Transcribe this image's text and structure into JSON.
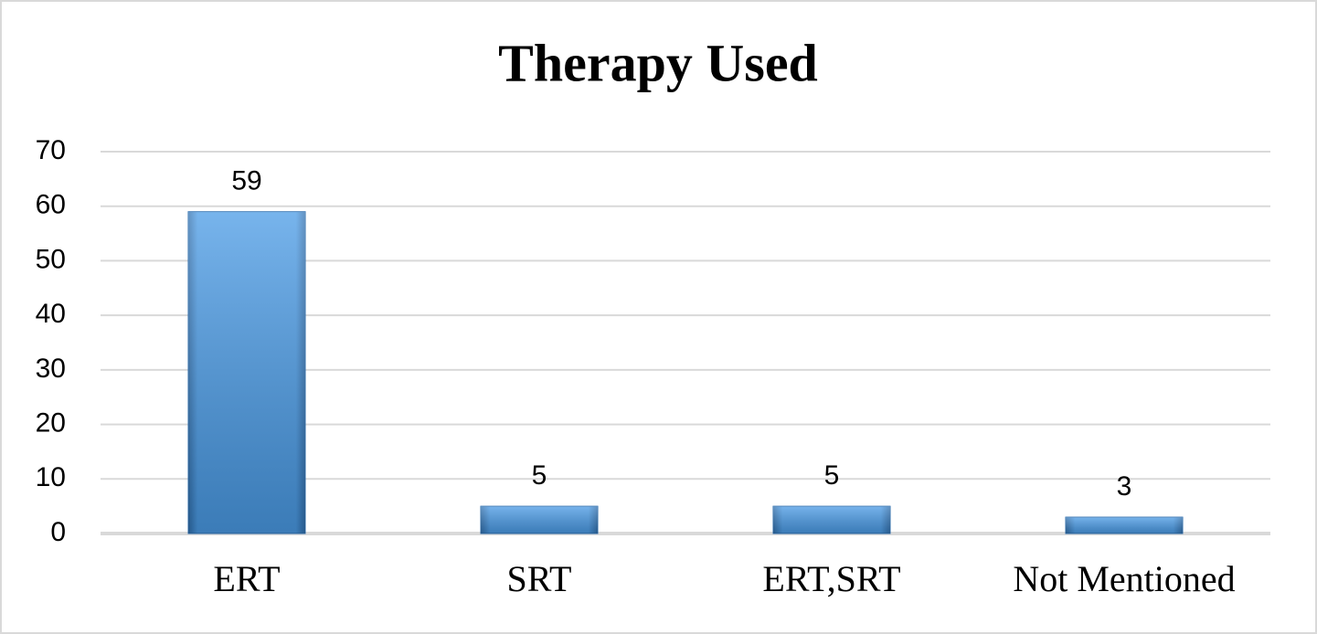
{
  "chart_data": {
    "type": "bar",
    "title": "Therapy Used",
    "categories": [
      "ERT",
      "SRT",
      "ERT,SRT",
      "Not Mentioned"
    ],
    "values": [
      59,
      5,
      5,
      3
    ],
    "color": "#4a9be6",
    "ylim": [
      0,
      70
    ],
    "yticks": [
      0,
      10,
      20,
      30,
      40,
      50,
      60,
      70
    ],
    "grid": true
  }
}
